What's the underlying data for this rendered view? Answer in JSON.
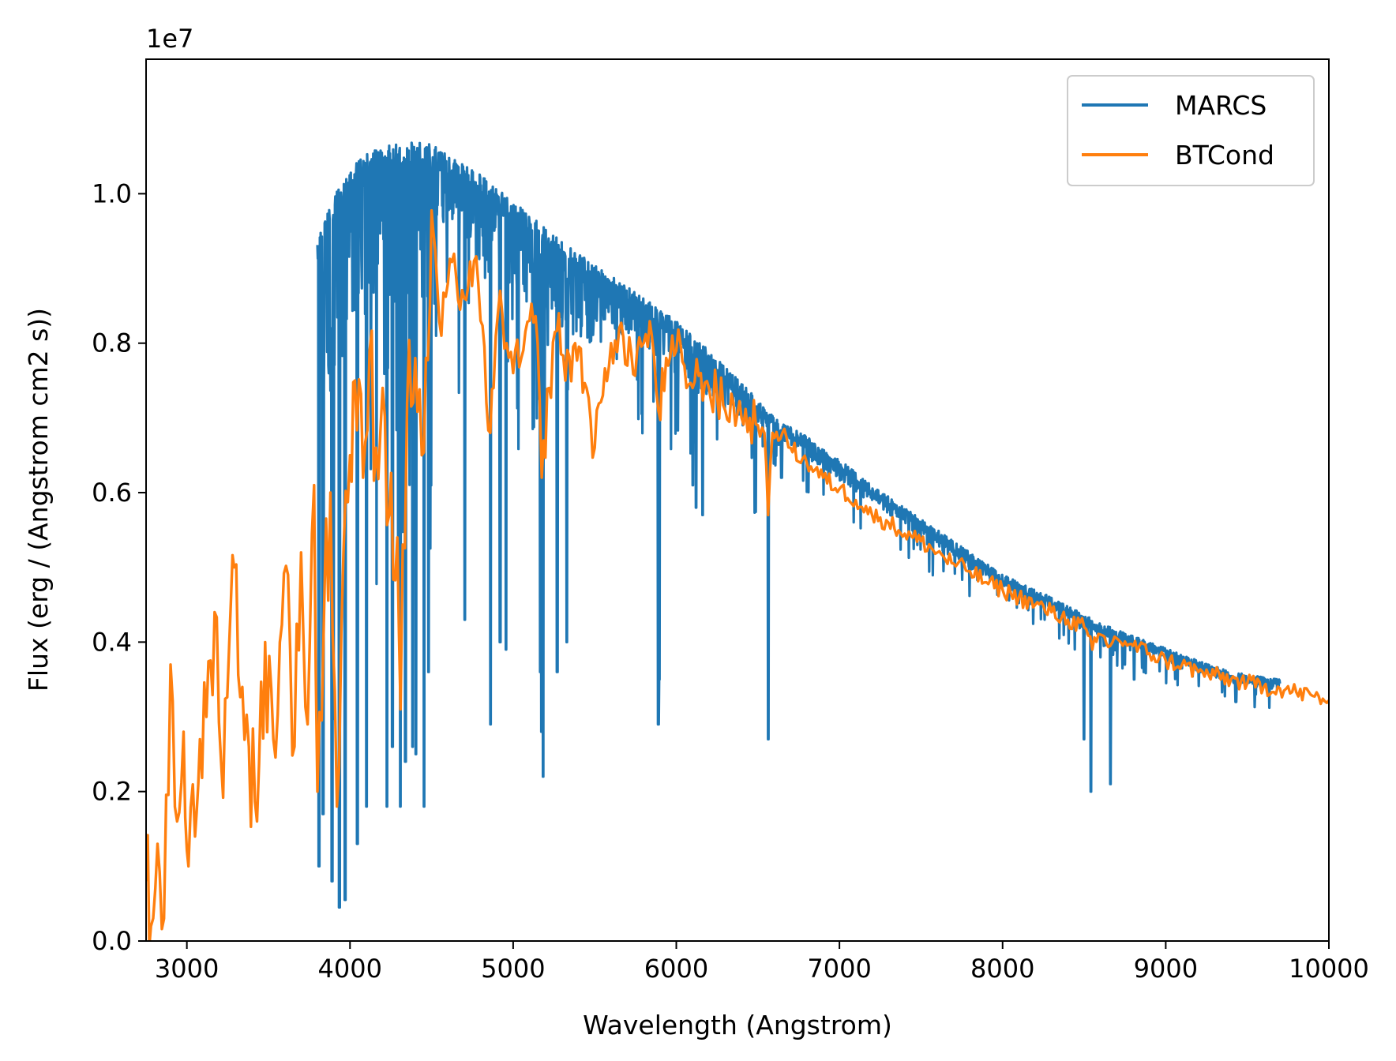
{
  "chart_data": {
    "type": "line",
    "title": "",
    "xlabel": "Wavelength (Angstrom)",
    "ylabel": "Flux (erg / (Angstrom cm2 s))",
    "y_offset_label": "1e7",
    "xlim": [
      2750,
      10000
    ],
    "ylim": [
      0.0,
      11.8
    ],
    "x_ticks": [
      3000,
      4000,
      5000,
      6000,
      7000,
      8000,
      9000,
      10000
    ],
    "x_tick_labels": [
      "3000",
      "4000",
      "5000",
      "6000",
      "7000",
      "8000",
      "9000",
      "10000"
    ],
    "y_ticks": [
      0,
      2,
      4,
      6,
      8,
      10
    ],
    "y_tick_labels": [
      "0.0",
      "0.2",
      "0.4",
      "0.6",
      "0.8",
      "1.0"
    ],
    "grid": false,
    "legend_position": "top-right",
    "series": [
      {
        "name": "MARCS",
        "color": "#1f77b4",
        "x_range": [
          3800,
          9700
        ],
        "continuum": [
          [
            3800,
            9.4
          ],
          [
            3950,
            10.2
          ],
          [
            4050,
            10.5
          ],
          [
            4200,
            10.65
          ],
          [
            4450,
            10.7
          ],
          [
            4600,
            10.55
          ],
          [
            4800,
            10.25
          ],
          [
            5000,
            9.9
          ],
          [
            5300,
            9.35
          ],
          [
            5500,
            9.05
          ],
          [
            5700,
            8.75
          ],
          [
            6000,
            8.3
          ],
          [
            6200,
            7.9
          ],
          [
            6500,
            7.25
          ],
          [
            6600,
            7.0
          ],
          [
            6800,
            6.75
          ],
          [
            7000,
            6.45
          ],
          [
            7200,
            6.1
          ],
          [
            7500,
            5.65
          ],
          [
            7800,
            5.2
          ],
          [
            8000,
            4.9
          ],
          [
            8300,
            4.6
          ],
          [
            8600,
            4.25
          ],
          [
            8900,
            4.0
          ],
          [
            9200,
            3.75
          ],
          [
            9400,
            3.6
          ],
          [
            9700,
            3.5
          ]
        ],
        "deep_lines": [
          [
            3810,
            1.0
          ],
          [
            3835,
            1.7
          ],
          [
            3890,
            0.8
          ],
          [
            3935,
            0.45
          ],
          [
            3970,
            0.55
          ],
          [
            4045,
            1.3
          ],
          [
            4102,
            1.8
          ],
          [
            4227,
            1.8
          ],
          [
            4260,
            2.6
          ],
          [
            4308,
            1.8
          ],
          [
            4340,
            2.4
          ],
          [
            4383,
            2.6
          ],
          [
            4404,
            2.5
          ],
          [
            4454,
            1.8
          ],
          [
            4481,
            3.6
          ],
          [
            4703,
            4.3
          ],
          [
            4861,
            2.9
          ],
          [
            4920,
            4.0
          ],
          [
            4957,
            3.9
          ],
          [
            5167,
            3.6
          ],
          [
            5173,
            2.8
          ],
          [
            5184,
            2.2
          ],
          [
            5270,
            3.6
          ],
          [
            5328,
            4.0
          ],
          [
            5890,
            2.9
          ],
          [
            5896,
            3.5
          ],
          [
            6102,
            6.1
          ],
          [
            6122,
            5.8
          ],
          [
            6162,
            5.7
          ],
          [
            6563,
            2.7
          ],
          [
            6645,
            6.2
          ],
          [
            7445,
            6.0
          ],
          [
            7699,
            5.8
          ],
          [
            8498,
            2.7
          ],
          [
            8542,
            2.0
          ],
          [
            8662,
            2.1
          ],
          [
            8806,
            3.5
          ],
          [
            8824,
            4.2
          ],
          [
            9213,
            3.6
          ],
          [
            9430,
            3.2
          ],
          [
            9550,
            3.3
          ]
        ]
      },
      {
        "name": "BTCond",
        "color": "#ff7f0e",
        "x_range": [
          2750,
          10000
        ],
        "points": [
          [
            2750,
            0.8
          ],
          [
            2780,
            0.2
          ],
          [
            2820,
            1.3
          ],
          [
            2860,
            0.3
          ],
          [
            2900,
            3.7
          ],
          [
            2940,
            1.6
          ],
          [
            2980,
            2.8
          ],
          [
            3010,
            1.0
          ],
          [
            3050,
            1.4
          ],
          [
            3080,
            2.7
          ],
          [
            3120,
            3.0
          ],
          [
            3170,
            4.4
          ],
          [
            3210,
            2.4
          ],
          [
            3260,
            4.0
          ],
          [
            3290,
            5.0
          ],
          [
            3340,
            3.4
          ],
          [
            3380,
            2.6
          ],
          [
            3430,
            1.6
          ],
          [
            3480,
            4.0
          ],
          [
            3530,
            2.7
          ],
          [
            3570,
            4.0
          ],
          [
            3620,
            4.9
          ],
          [
            3660,
            2.6
          ],
          [
            3700,
            5.2
          ],
          [
            3740,
            2.9
          ],
          [
            3780,
            6.1
          ],
          [
            3800,
            2.0
          ],
          [
            3840,
            4.3
          ],
          [
            3880,
            6.0
          ],
          [
            3920,
            1.8
          ],
          [
            3960,
            5.2
          ],
          [
            4000,
            6.5
          ],
          [
            4030,
            7.5
          ],
          [
            4080,
            6.2
          ],
          [
            4120,
            7.9
          ],
          [
            4160,
            6.6
          ],
          [
            4200,
            7.4
          ],
          [
            4240,
            5.7
          ],
          [
            4290,
            5.4
          ],
          [
            4310,
            3.1
          ],
          [
            4350,
            7.2
          ],
          [
            4400,
            7.8
          ],
          [
            4440,
            6.5
          ],
          [
            4490,
            8.5
          ],
          [
            4510,
            9.5
          ],
          [
            4560,
            8.1
          ],
          [
            4600,
            8.8
          ],
          [
            4650,
            8.9
          ],
          [
            4700,
            8.6
          ],
          [
            4760,
            9.1
          ],
          [
            4800,
            8.3
          ],
          [
            4860,
            6.8
          ],
          [
            4880,
            7.4
          ],
          [
            4920,
            8.7
          ],
          [
            4960,
            8.0
          ],
          [
            5000,
            7.6
          ],
          [
            5050,
            7.8
          ],
          [
            5100,
            8.3
          ],
          [
            5150,
            8.0
          ],
          [
            5175,
            6.2
          ],
          [
            5220,
            7.4
          ],
          [
            5280,
            8.4
          ],
          [
            5320,
            7.5
          ],
          [
            5380,
            8.0
          ],
          [
            5450,
            7.4
          ],
          [
            5500,
            6.6
          ],
          [
            5550,
            7.3
          ],
          [
            5600,
            8.0
          ],
          [
            5650,
            8.2
          ],
          [
            5700,
            7.7
          ],
          [
            5760,
            7.9
          ],
          [
            5800,
            8.0
          ],
          [
            5850,
            8.1
          ],
          [
            5890,
            7.1
          ],
          [
            5950,
            7.7
          ],
          [
            6000,
            7.9
          ],
          [
            6050,
            7.7
          ],
          [
            6100,
            7.4
          ],
          [
            6150,
            7.6
          ],
          [
            6200,
            7.4
          ],
          [
            6250,
            7.3
          ],
          [
            6300,
            7.1
          ],
          [
            6350,
            7.2
          ],
          [
            6400,
            7.0
          ],
          [
            6450,
            7.0
          ],
          [
            6500,
            6.9
          ],
          [
            6540,
            6.8
          ],
          [
            6563,
            5.7
          ],
          [
            6590,
            6.8
          ],
          [
            6650,
            6.8
          ],
          [
            6700,
            6.6
          ],
          [
            6800,
            6.4
          ],
          [
            6900,
            6.2
          ],
          [
            7000,
            6.05
          ],
          [
            7100,
            5.9
          ],
          [
            7200,
            5.7
          ],
          [
            7300,
            5.6
          ],
          [
            7400,
            5.45
          ],
          [
            7500,
            5.35
          ],
          [
            7600,
            5.2
          ],
          [
            7700,
            5.05
          ],
          [
            7800,
            4.95
          ],
          [
            7900,
            4.8
          ],
          [
            8000,
            4.7
          ],
          [
            8100,
            4.6
          ],
          [
            8200,
            4.5
          ],
          [
            8300,
            4.4
          ],
          [
            8400,
            4.3
          ],
          [
            8500,
            4.2
          ],
          [
            8550,
            3.9
          ],
          [
            8600,
            4.1
          ],
          [
            8660,
            3.95
          ],
          [
            8700,
            4.05
          ],
          [
            8800,
            3.95
          ],
          [
            8900,
            3.85
          ],
          [
            9000,
            3.75
          ],
          [
            9100,
            3.7
          ],
          [
            9200,
            3.6
          ],
          [
            9300,
            3.55
          ],
          [
            9400,
            3.5
          ],
          [
            9500,
            3.45
          ],
          [
            9600,
            3.4
          ],
          [
            9700,
            3.38
          ],
          [
            9800,
            3.33
          ],
          [
            9900,
            3.28
          ],
          [
            10000,
            3.22
          ]
        ]
      }
    ]
  }
}
